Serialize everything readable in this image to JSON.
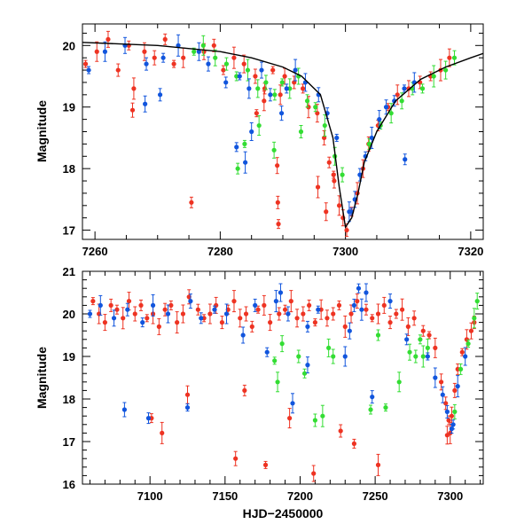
{
  "chart_data": [
    {
      "type": "scatter",
      "xlabel": "",
      "ylabel": "Magnitude",
      "xlim": [
        7258,
        7322
      ],
      "ylim": [
        20.35,
        16.85
      ],
      "y_inverted": true,
      "grid": false,
      "x_ticks": [
        "7260",
        "7280",
        "7300",
        "7320"
      ],
      "y_ticks": [
        "17",
        "18",
        "19",
        "20"
      ],
      "x_tick_values": [
        7260,
        7280,
        7300,
        7320
      ],
      "y_tick_values": [
        17,
        18,
        19,
        20
      ],
      "colors": {
        "red": "#ee3322",
        "green": "#33dd33",
        "blue": "#1155dd",
        "model": "#000000"
      },
      "model_curve": {
        "x": [
          7258,
          7270,
          7280,
          7285,
          7290,
          7293,
          7296,
          7298,
          7299,
          7300,
          7301,
          7302,
          7303,
          7305,
          7308,
          7312,
          7316,
          7320,
          7322
        ],
        "y": [
          20.05,
          20.0,
          19.9,
          19.8,
          19.65,
          19.5,
          19.2,
          18.5,
          17.7,
          17.05,
          17.2,
          17.6,
          18.1,
          18.6,
          19.1,
          19.45,
          19.65,
          19.8,
          19.87
        ]
      },
      "series": [
        {
          "color": "red",
          "x": [
            7258.5,
            7260.3,
            7262.1,
            7263.7,
            7265.4,
            7266.2,
            7267.9,
            7269.5,
            7271.2,
            7272.6,
            7274.1,
            7277.4,
            7279.0,
            7280.5,
            7282.2,
            7283.8,
            7285.6,
            7287.1,
            7288.4,
            7289.6,
            7290.3,
            7291.8,
            7293.2,
            7294.1,
            7295.5,
            7296.6,
            7297.4,
            7298.1,
            7299.0,
            7299.6,
            7300.2,
            7301.0,
            7301.9,
            7302.8,
            7303.7,
            7305.2,
            7306.8,
            7308.3,
            7310.1,
            7311.9,
            7313.6,
            7315.2,
            7316.6,
            7266.0,
            7275.4,
            7285.8,
            7287.0,
            7289.1,
            7289.2,
            7289.3,
            7295.6,
            7296.9,
            7298.2
          ],
          "y": [
            19.7,
            19.9,
            20.1,
            19.6,
            20.0,
            19.3,
            19.9,
            19.8,
            20.1,
            19.7,
            19.8,
            19.9,
            20.0,
            19.6,
            19.8,
            19.7,
            19.5,
            19.3,
            19.6,
            19.2,
            19.5,
            19.4,
            19.3,
            19.0,
            18.9,
            18.5,
            18.1,
            17.9,
            17.4,
            17.2,
            17.0,
            17.3,
            17.6,
            18.0,
            18.4,
            18.7,
            19.0,
            19.2,
            19.3,
            19.4,
            19.5,
            19.6,
            19.8,
            18.95,
            17.45,
            18.9,
            19.1,
            18.05,
            17.45,
            17.1,
            17.7,
            17.3,
            17.8
          ]
        },
        {
          "color": "green",
          "x": [
            7275.8,
            7277.3,
            7279.2,
            7281.0,
            7282.6,
            7284.4,
            7286.0,
            7287.3,
            7288.7,
            7289.9,
            7291.1,
            7292.5,
            7293.9,
            7295.2,
            7296.7,
            7298.3,
            7299.5,
            7303.8,
            7305.6,
            7307.3,
            7309.0,
            7310.7,
            7312.3,
            7314.1,
            7316.0,
            7317.4,
            7282.8,
            7283.9,
            7286.2,
            7288.6,
            7292.9
          ],
          "y": [
            19.9,
            20.0,
            19.8,
            19.7,
            19.5,
            19.6,
            19.3,
            19.4,
            19.2,
            19.4,
            19.3,
            19.5,
            19.1,
            19.0,
            18.7,
            18.2,
            17.9,
            18.4,
            18.7,
            18.9,
            19.1,
            19.3,
            19.3,
            19.5,
            19.6,
            19.8,
            18.0,
            18.4,
            18.7,
            18.3,
            18.6
          ]
        },
        {
          "color": "blue",
          "x": [
            7259.0,
            7261.6,
            7264.8,
            7268.2,
            7270.9,
            7273.3,
            7276.6,
            7278.1,
            7280.9,
            7283.1,
            7284.6,
            7286.6,
            7288.0,
            7290.6,
            7292.0,
            7293.6,
            7295.7,
            7297.1,
            7298.6,
            7300.6,
            7301.5,
            7302.3,
            7303.2,
            7304.2,
            7305.4,
            7306.5,
            7307.8,
            7309.4,
            7311.0,
            7268.0,
            7270.4,
            7282.6,
            7284.0,
            7285.0,
            7289.8,
            7309.5,
            7300.9
          ],
          "y": [
            19.6,
            19.9,
            20.0,
            19.7,
            19.8,
            20.0,
            19.9,
            19.7,
            19.4,
            19.5,
            19.3,
            19.6,
            19.2,
            19.3,
            19.6,
            19.4,
            19.2,
            18.9,
            18.5,
            17.3,
            17.5,
            17.9,
            18.2,
            18.5,
            18.8,
            19.0,
            19.1,
            19.3,
            19.4,
            19.05,
            19.2,
            18.35,
            18.1,
            18.6,
            18.9,
            18.15,
            17.3
          ]
        }
      ]
    },
    {
      "type": "scatter",
      "xlabel": "HJD−2450000",
      "ylabel": "Magnitude",
      "xlim": [
        7055,
        7322
      ],
      "ylim": [
        21,
        16
      ],
      "y_inverted": true,
      "grid": false,
      "x_ticks": [
        "7100",
        "7150",
        "7200",
        "7250",
        "7300"
      ],
      "y_ticks": [
        "16",
        "17",
        "18",
        "19",
        "20",
        "21"
      ],
      "x_tick_values": [
        7100,
        7150,
        7200,
        7250,
        7300
      ],
      "y_tick_values": [
        16,
        17,
        18,
        19,
        20,
        21
      ],
      "colors": {
        "red": "#ee3322",
        "green": "#33dd33",
        "blue": "#1155dd"
      },
      "series": [
        {
          "color": "red",
          "x": [
            7062,
            7066,
            7070,
            7074,
            7078,
            7082,
            7086,
            7090,
            7094,
            7098,
            7102,
            7106,
            7110,
            7114,
            7118,
            7122,
            7126,
            7132,
            7136,
            7140,
            7144,
            7148,
            7152,
            7156,
            7160,
            7164,
            7168,
            7172,
            7176,
            7180,
            7186,
            7190,
            7194,
            7198,
            7202,
            7206,
            7210,
            7214,
            7218,
            7222,
            7226,
            7230,
            7234,
            7238,
            7244,
            7248,
            7252,
            7256,
            7260,
            7264,
            7268,
            7272,
            7276,
            7282,
            7286,
            7290,
            7294,
            7297,
            7299,
            7300,
            7301,
            7303,
            7305,
            7308,
            7311,
            7314,
            7316,
            7101,
            7108,
            7125,
            7157,
            7163,
            7177,
            7193,
            7209,
            7227,
            7236,
            7252,
            7298
          ],
          "y": [
            20.3,
            20.0,
            19.8,
            20.2,
            20.1,
            19.9,
            20.3,
            20.0,
            20.2,
            19.9,
            20.0,
            19.7,
            20.1,
            20.2,
            19.8,
            20.0,
            20.4,
            20.1,
            19.9,
            20.0,
            20.2,
            19.8,
            20.1,
            20.3,
            19.9,
            20.0,
            19.7,
            20.1,
            20.2,
            19.8,
            20.0,
            20.1,
            20.3,
            19.9,
            20.0,
            20.2,
            19.8,
            20.1,
            19.9,
            20.0,
            20.2,
            19.7,
            20.0,
            20.3,
            20.1,
            19.9,
            20.0,
            20.2,
            19.8,
            20.0,
            20.1,
            19.7,
            19.9,
            19.6,
            19.5,
            19.2,
            18.4,
            17.9,
            17.5,
            17.2,
            17.6,
            18.2,
            18.7,
            19.1,
            19.4,
            19.6,
            19.8,
            17.55,
            17.2,
            18.1,
            16.6,
            18.2,
            16.45,
            17.55,
            16.25,
            17.25,
            16.95,
            16.45,
            17.15
          ]
        },
        {
          "color": "green",
          "x": [
            7183,
            7185,
            7188,
            7199,
            7203,
            7215,
            7219,
            7222,
            7252,
            7257,
            7266,
            7273,
            7277,
            7280,
            7282,
            7285,
            7303,
            7307,
            7312,
            7316,
            7318,
            7210,
            7247
          ],
          "y": [
            18.9,
            18.4,
            19.3,
            19.0,
            18.6,
            17.6,
            19.2,
            19.0,
            19.5,
            17.8,
            18.4,
            19.1,
            19.0,
            19.4,
            19.0,
            19.2,
            17.7,
            18.7,
            19.3,
            19.9,
            20.3,
            17.5,
            17.75
          ]
        },
        {
          "color": "blue",
          "x": [
            7060,
            7067,
            7076,
            7085,
            7095,
            7102,
            7112,
            7127,
            7134,
            7143,
            7151,
            7162,
            7170,
            7178,
            7184,
            7187,
            7192,
            7205,
            7212,
            7230,
            7233,
            7236,
            7239,
            7241,
            7244,
            7260,
            7271,
            7285,
            7290,
            7295,
            7298,
            7302,
            7305,
            7310,
            7083,
            7099,
            7125,
            7195,
            7205,
            7248,
            7301
          ],
          "y": [
            20.0,
            20.2,
            19.9,
            20.1,
            19.8,
            20.2,
            20.0,
            20.3,
            19.9,
            20.1,
            20.0,
            19.5,
            20.2,
            19.1,
            20.3,
            20.5,
            20.0,
            19.7,
            20.1,
            19.0,
            19.6,
            20.2,
            20.6,
            20.1,
            20.5,
            20.3,
            19.4,
            19.0,
            18.5,
            18.1,
            17.7,
            17.4,
            18.3,
            19.0,
            17.75,
            17.55,
            17.8,
            17.9,
            18.8,
            18.05,
            17.3
          ]
        }
      ]
    }
  ]
}
